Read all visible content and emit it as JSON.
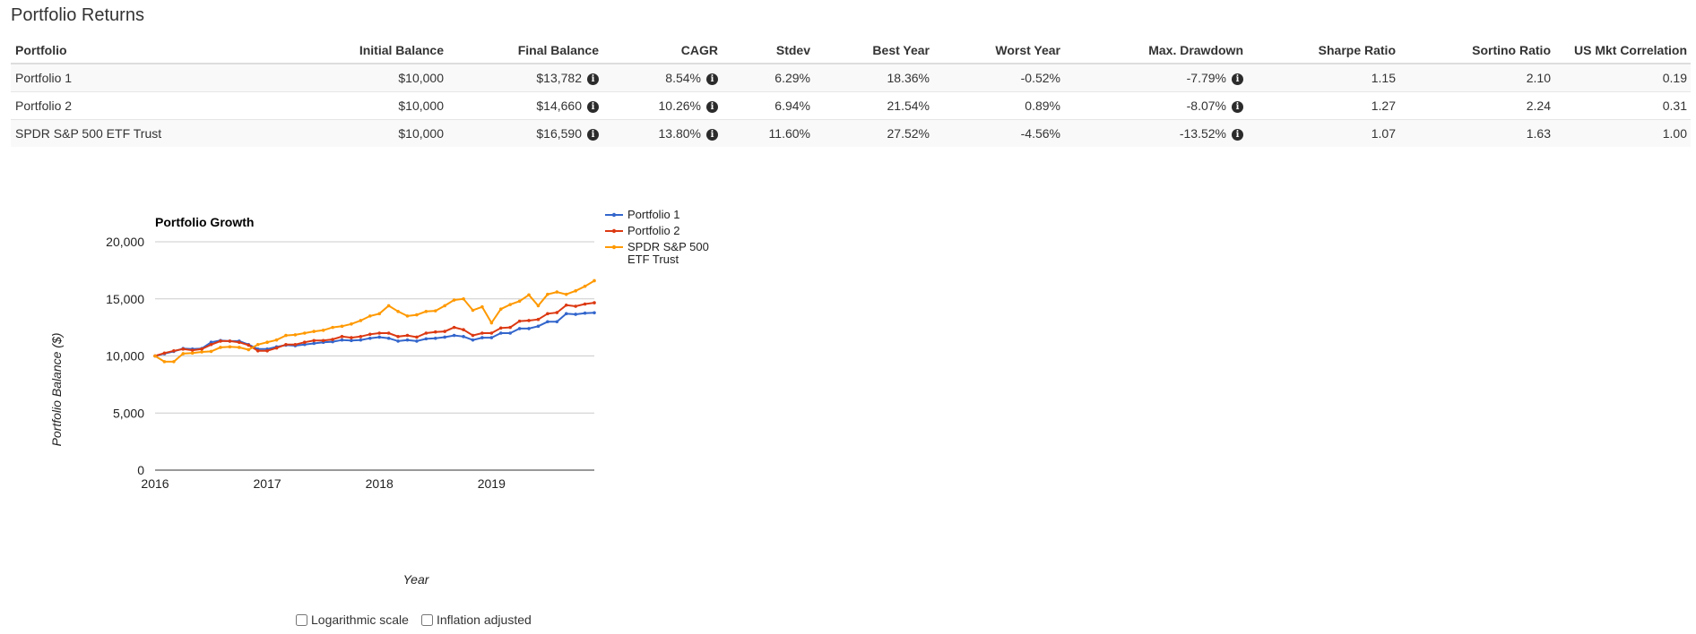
{
  "page_title": "Portfolio Returns",
  "table": {
    "headers": [
      "Portfolio",
      "Initial Balance",
      "Final Balance",
      "CAGR",
      "Stdev",
      "Best Year",
      "Worst Year",
      "Max. Drawdown",
      "Sharpe Ratio",
      "Sortino Ratio",
      "US Mkt Correlation"
    ],
    "rows": [
      {
        "name": "Portfolio 1",
        "initial": "$10,000",
        "final": "$13,782",
        "cagr": "8.54%",
        "stdev": "6.29%",
        "best": "18.36%",
        "worst": "-0.52%",
        "drawdown": "-7.79%",
        "sharpe": "1.15",
        "sortino": "2.10",
        "corr": "0.19"
      },
      {
        "name": "Portfolio 2",
        "initial": "$10,000",
        "final": "$14,660",
        "cagr": "10.26%",
        "stdev": "6.94%",
        "best": "21.54%",
        "worst": "0.89%",
        "drawdown": "-8.07%",
        "sharpe": "1.27",
        "sortino": "2.24",
        "corr": "0.31"
      },
      {
        "name": "SPDR S&P 500 ETF Trust",
        "initial": "$10,000",
        "final": "$16,590",
        "cagr": "13.80%",
        "stdev": "11.60%",
        "best": "27.52%",
        "worst": "-4.56%",
        "drawdown": "-13.52%",
        "sharpe": "1.07",
        "sortino": "1.63",
        "corr": "1.00"
      }
    ],
    "info_icon": "info-circle-icon"
  },
  "chart_data": {
    "type": "line",
    "title": "Portfolio Growth",
    "xlabel": "Year",
    "ylabel": "Portfolio Balance ($)",
    "ylim": [
      0,
      20000
    ],
    "yticks": [
      "0",
      "5,000",
      "10,000",
      "15,000",
      "20,000"
    ],
    "xticks": [
      "2016",
      "2017",
      "2018",
      "2019"
    ],
    "x_start": "2016-01",
    "x_end": "2019-12",
    "legend_position": "right",
    "series": [
      {
        "name": "Portfolio 1",
        "color": "#3366cc",
        "values": [
          10000,
          10200,
          10400,
          10650,
          10600,
          10650,
          11200,
          11350,
          11300,
          11300,
          11000,
          10600,
          10600,
          10800,
          10950,
          10900,
          11000,
          11100,
          11200,
          11250,
          11400,
          11350,
          11400,
          11550,
          11650,
          11550,
          11300,
          11400,
          11300,
          11500,
          11550,
          11650,
          11800,
          11700,
          11400,
          11600,
          11600,
          12000,
          12000,
          12400,
          12400,
          12600,
          13000,
          13000,
          13700,
          13650,
          13750,
          13782
        ]
      },
      {
        "name": "Portfolio 2",
        "color": "#dc3912",
        "values": [
          10000,
          10250,
          10450,
          10600,
          10500,
          10600,
          11000,
          11300,
          11300,
          11200,
          10950,
          10450,
          10450,
          10700,
          11000,
          11000,
          11200,
          11350,
          11350,
          11450,
          11700,
          11600,
          11700,
          11900,
          12000,
          12000,
          11700,
          11800,
          11650,
          12000,
          12100,
          12150,
          12500,
          12300,
          11800,
          12000,
          12000,
          12450,
          12500,
          13050,
          13100,
          13200,
          13700,
          13800,
          14450,
          14350,
          14550,
          14660
        ]
      },
      {
        "name": "SPDR S&P 500 ETF Trust",
        "color": "#ff9900",
        "values": [
          10000,
          9500,
          9500,
          10200,
          10250,
          10350,
          10400,
          10750,
          10800,
          10750,
          10550,
          11000,
          11200,
          11400,
          11800,
          11850,
          12000,
          12150,
          12250,
          12500,
          12600,
          12800,
          13100,
          13500,
          13700,
          14400,
          13900,
          13500,
          13600,
          13900,
          13950,
          14400,
          14900,
          15000,
          14000,
          14300,
          12900,
          14100,
          14500,
          14800,
          15350,
          14400,
          15400,
          15600,
          15400,
          15700,
          16100,
          16590
        ]
      }
    ]
  },
  "options": {
    "log_scale_label": "Logarithmic scale",
    "inflation_label": "Inflation adjusted"
  }
}
